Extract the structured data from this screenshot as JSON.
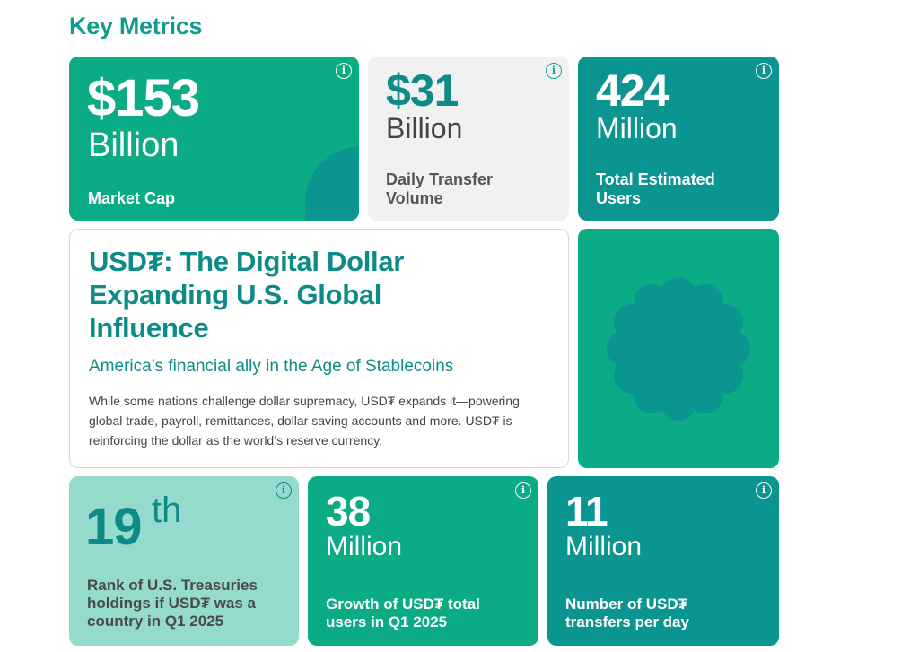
{
  "heading": "Key Metrics",
  "info_glyph": "i",
  "cards": {
    "market_cap": {
      "value": "$153",
      "unit": "Billion",
      "label": "Market Cap"
    },
    "daily_volume": {
      "value": "$31",
      "unit": "Billion",
      "label": "Daily Transfer Volume"
    },
    "users": {
      "value": "424",
      "unit": "Million",
      "label": "Total Estimated Users"
    },
    "rank": {
      "value": "19",
      "suffix": "th",
      "label": "Rank of U.S. Treasuries holdings if USD₮ was a country in Q1 2025"
    },
    "growth": {
      "value": "38",
      "unit": "Million",
      "label": "Growth of USD₮ total users in Q1 2025"
    },
    "transfers": {
      "value": "11",
      "unit": "Million",
      "label": "Number of USD₮ transfers per day"
    }
  },
  "hero": {
    "title": "USD₮: The Digital Dollar Expanding U.S. Global Influence",
    "subtitle": "America’s financial ally in the Age of Stablecoins",
    "body": "While some nations challenge dollar supremacy, USD₮ expands it—powering global trade, payroll, remittances, dollar saving accounts and more. USD₮ is reinforcing the dollar as the world’s reserve currency."
  },
  "icons": {
    "info": "info-circle-icon",
    "decor_semicircles": "semicircle-decor-icon",
    "decor_flower": "flower-decor-icon"
  },
  "colors": {
    "green": "#0aab85",
    "teal": "#0b9590",
    "mint": "#95dbcd",
    "gray": "#f1f1f1",
    "heading": "#129b8e"
  }
}
